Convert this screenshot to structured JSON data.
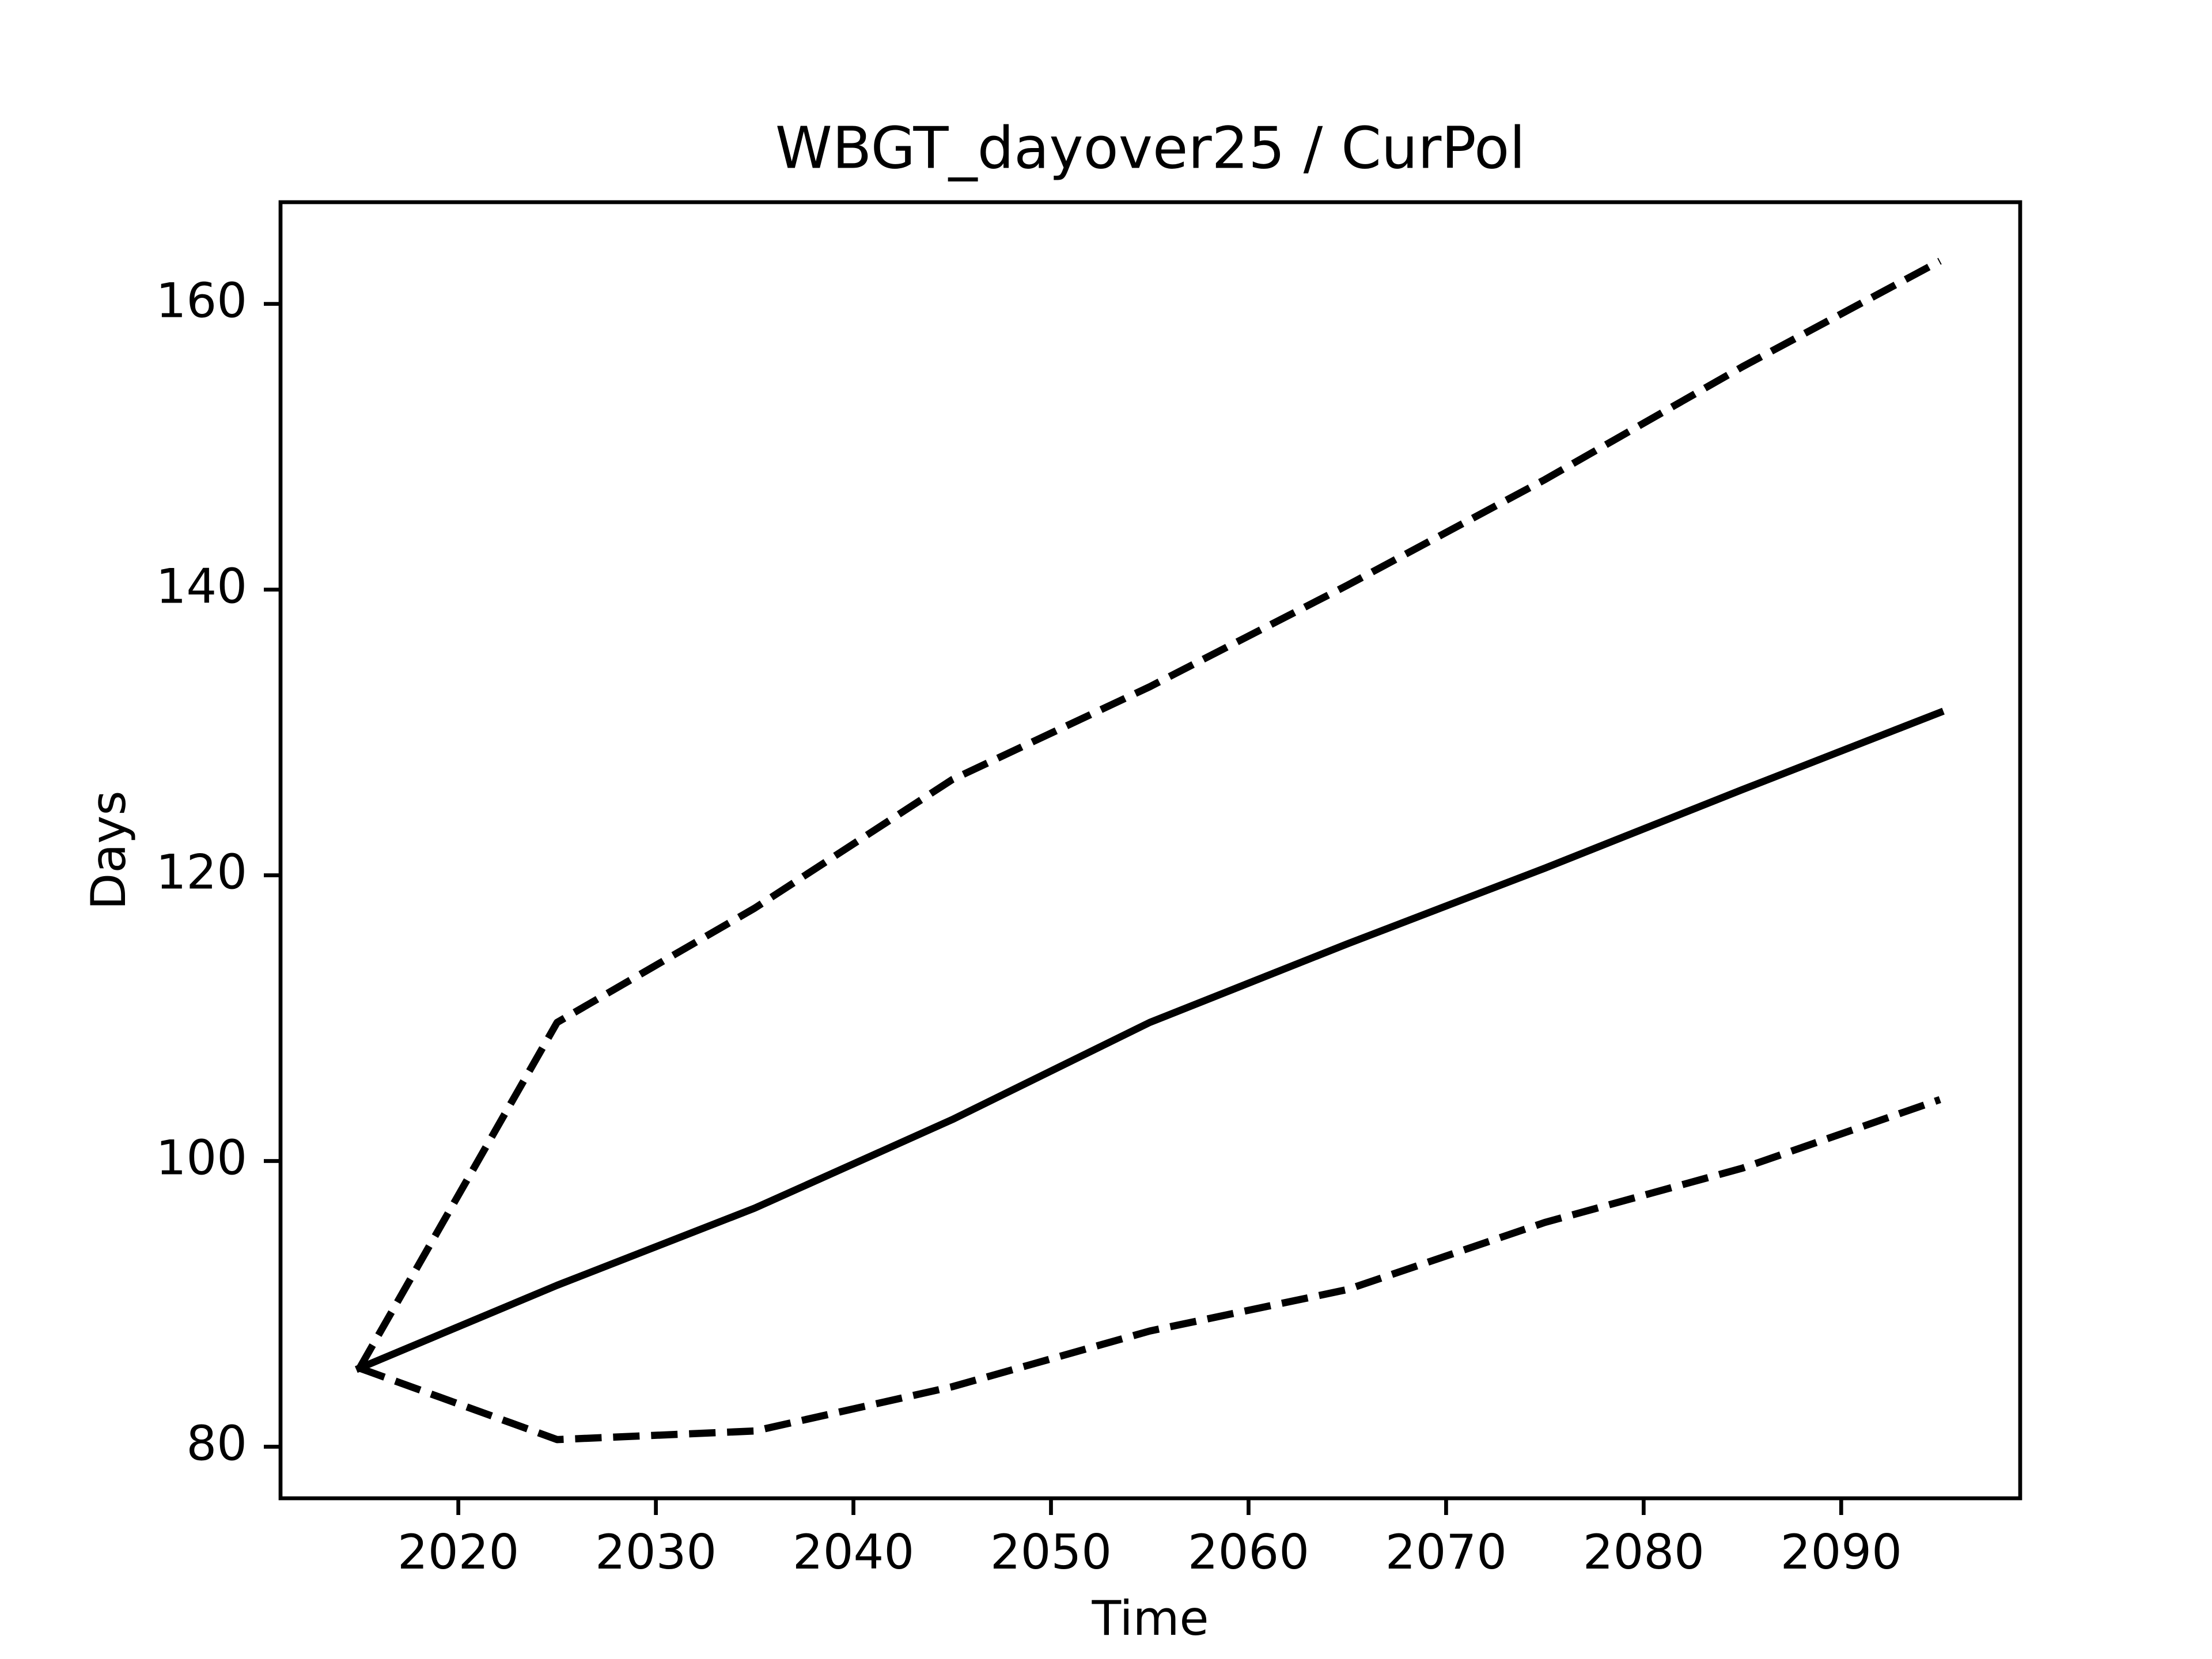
{
  "chart_data": {
    "type": "line",
    "title": "WBGT_dayover25 / CurPol",
    "x_label": "Time",
    "y_label": "Days",
    "x": [
      2015,
      2025,
      2035,
      2045,
      2055,
      2065,
      2075,
      2085,
      2095
    ],
    "series": [
      {
        "color": "#000000",
        "linestyle": "solid",
        "values": [
          85.5,
          91.3,
          96.7,
          102.9,
          109.7,
          115.2,
          120.5,
          126.0,
          131.4
        ]
      },
      {
        "color": "#000000",
        "linestyle": "dashed",
        "values": [
          85.5,
          109.7,
          117.7,
          126.7,
          133.2,
          140.3,
          147.7,
          155.6,
          163.0
        ]
      },
      {
        "color": "#000000",
        "linestyle": "dashed",
        "values": [
          85.5,
          80.5,
          81.1,
          84.2,
          88.1,
          91.0,
          95.7,
          99.5,
          104.3
        ]
      }
    ],
    "xlim": [
      2011.0,
      2099.06
    ],
    "ylim": [
      76.39,
      167.12
    ],
    "xticks": [
      2020,
      2030,
      2040,
      2050,
      2060,
      2070,
      2080,
      2090
    ],
    "yticks": [
      80,
      100,
      120,
      140,
      160
    ],
    "grid": false
  }
}
